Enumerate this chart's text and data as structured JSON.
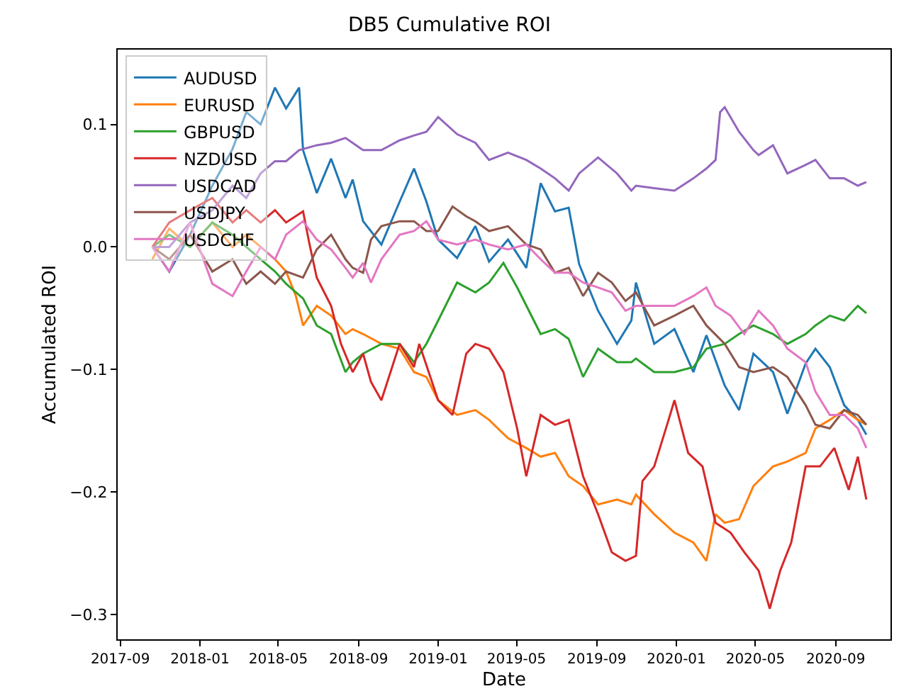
{
  "chart_data": {
    "type": "line",
    "title": "DB5 Cumulative ROI",
    "xlabel": "Date",
    "ylabel": "Accumulated ROI",
    "legend": "top left",
    "xlim": [
      "2017-08-28",
      "2020-11-24"
    ],
    "ylim": [
      -0.32,
      0.161
    ],
    "xticks": [
      "2017-09",
      "2018-01",
      "2018-05",
      "2018-09",
      "2019-01",
      "2019-05",
      "2019-09",
      "2020-01",
      "2020-05",
      "2020-09"
    ],
    "yticks": [
      {
        "value": -0.3,
        "label": "−0.3"
      },
      {
        "value": -0.2,
        "label": "−0.2"
      },
      {
        "value": -0.1,
        "label": "−0.1"
      },
      {
        "value": 0,
        "label": "0.0"
      },
      {
        "value": 0.1,
        "label": "0.1"
      }
    ],
    "series": [
      {
        "name": "AUDUSD",
        "color": "#1f77b4",
        "x": [
          "2017-10-20",
          "2017-11-15",
          "2017-12-17",
          "2018-01-20",
          "2018-02-20",
          "2018-03-13",
          "2018-04-04",
          "2018-04-26",
          "2018-05-13",
          "2018-06-02",
          "2018-06-08",
          "2018-06-29",
          "2018-07-21",
          "2018-08-12",
          "2018-08-23",
          "2018-09-08",
          "2018-10-06",
          "2018-11-03",
          "2018-11-25",
          "2018-12-14",
          "2019-01-01",
          "2019-01-30",
          "2019-02-27",
          "2019-03-20",
          "2019-04-18",
          "2019-05-16",
          "2019-06-07",
          "2019-06-29",
          "2019-07-20",
          "2019-08-05",
          "2019-09-03",
          "2019-10-02",
          "2019-10-24",
          "2019-10-31",
          "2019-11-28",
          "2019-12-29",
          "2020-01-27",
          "2020-02-16",
          "2020-03-15",
          "2020-04-06",
          "2020-04-28",
          "2020-05-28",
          "2020-06-19",
          "2020-07-17",
          "2020-08-01",
          "2020-08-23",
          "2020-09-14",
          "2020-10-05",
          "2020-10-18"
        ],
        "values": [
          0.0,
          -0.02,
          0.01,
          0.05,
          0.08,
          0.11,
          0.1,
          0.13,
          0.113,
          0.13,
          0.079,
          0.044,
          0.072,
          0.04,
          0.055,
          0.021,
          0.002,
          0.037,
          0.064,
          0.037,
          0.006,
          -0.009,
          0.017,
          -0.012,
          0.006,
          -0.017,
          0.052,
          0.029,
          0.032,
          -0.014,
          -0.052,
          -0.079,
          -0.06,
          -0.029,
          -0.079,
          -0.067,
          -0.102,
          -0.072,
          -0.113,
          -0.133,
          -0.087,
          -0.102,
          -0.136,
          -0.095,
          -0.083,
          -0.098,
          -0.129,
          -0.141,
          -0.153
        ]
      },
      {
        "name": "EURUSD",
        "color": "#ff7f0e",
        "x": [
          "2017-10-20",
          "2017-11-15",
          "2017-12-17",
          "2018-01-20",
          "2018-02-20",
          "2018-03-13",
          "2018-04-04",
          "2018-04-26",
          "2018-05-13",
          "2018-05-28",
          "2018-06-08",
          "2018-06-29",
          "2018-07-21",
          "2018-08-12",
          "2018-08-23",
          "2018-09-08",
          "2018-10-06",
          "2018-11-03",
          "2018-11-25",
          "2018-12-14",
          "2019-01-01",
          "2019-01-30",
          "2019-02-27",
          "2019-03-20",
          "2019-04-18",
          "2019-05-16",
          "2019-06-07",
          "2019-06-29",
          "2019-07-20",
          "2019-08-11",
          "2019-09-03",
          "2019-10-02",
          "2019-10-24",
          "2019-10-31",
          "2019-11-28",
          "2019-12-29",
          "2020-01-27",
          "2020-02-16",
          "2020-03-01",
          "2020-03-15",
          "2020-04-06",
          "2020-04-28",
          "2020-05-28",
          "2020-06-19",
          "2020-07-17",
          "2020-08-01",
          "2020-08-23",
          "2020-09-14",
          "2020-10-05",
          "2020-10-18"
        ],
        "values": [
          -0.01,
          0.015,
          0.0,
          0.02,
          0.0,
          0.01,
          0.0,
          -0.01,
          -0.02,
          -0.04,
          -0.064,
          -0.048,
          -0.056,
          -0.071,
          -0.067,
          -0.071,
          -0.079,
          -0.083,
          -0.102,
          -0.106,
          -0.125,
          -0.137,
          -0.133,
          -0.141,
          -0.156,
          -0.164,
          -0.171,
          -0.168,
          -0.187,
          -0.195,
          -0.21,
          -0.206,
          -0.21,
          -0.202,
          -0.218,
          -0.233,
          -0.241,
          -0.256,
          -0.218,
          -0.225,
          -0.222,
          -0.195,
          -0.179,
          -0.175,
          -0.168,
          -0.148,
          -0.141,
          -0.133,
          -0.141,
          -0.145
        ]
      },
      {
        "name": "GBPUSD",
        "color": "#2ca02c",
        "x": [
          "2017-10-20",
          "2017-11-15",
          "2017-12-17",
          "2018-01-20",
          "2018-02-20",
          "2018-03-13",
          "2018-04-04",
          "2018-04-26",
          "2018-05-13",
          "2018-06-08",
          "2018-06-29",
          "2018-07-21",
          "2018-08-12",
          "2018-08-23",
          "2018-09-08",
          "2018-10-06",
          "2018-11-03",
          "2018-11-25",
          "2018-12-14",
          "2019-01-01",
          "2019-01-30",
          "2019-02-27",
          "2019-03-20",
          "2019-04-11",
          "2019-05-02",
          "2019-06-07",
          "2019-06-29",
          "2019-07-20",
          "2019-08-11",
          "2019-09-03",
          "2019-10-02",
          "2019-10-24",
          "2019-10-31",
          "2019-11-28",
          "2019-12-29",
          "2020-01-27",
          "2020-02-16",
          "2020-03-15",
          "2020-04-06",
          "2020-04-28",
          "2020-05-28",
          "2020-06-19",
          "2020-07-17",
          "2020-08-01",
          "2020-08-23",
          "2020-09-14",
          "2020-10-05",
          "2020-10-18"
        ],
        "values": [
          0.0,
          0.01,
          0.0,
          0.02,
          0.01,
          0.0,
          -0.01,
          -0.02,
          -0.03,
          -0.042,
          -0.064,
          -0.071,
          -0.102,
          -0.094,
          -0.087,
          -0.079,
          -0.079,
          -0.094,
          -0.079,
          -0.06,
          -0.029,
          -0.037,
          -0.029,
          -0.013,
          -0.033,
          -0.071,
          -0.067,
          -0.075,
          -0.106,
          -0.083,
          -0.094,
          -0.094,
          -0.091,
          -0.102,
          -0.102,
          -0.098,
          -0.083,
          -0.079,
          -0.071,
          -0.064,
          -0.071,
          -0.079,
          -0.071,
          -0.064,
          -0.056,
          -0.06,
          -0.048,
          -0.054
        ]
      },
      {
        "name": "NZDUSD",
        "color": "#d62728",
        "x": [
          "2017-10-20",
          "2017-11-15",
          "2017-12-17",
          "2018-01-20",
          "2018-02-20",
          "2018-03-13",
          "2018-04-04",
          "2018-04-26",
          "2018-05-13",
          "2018-06-08",
          "2018-06-18",
          "2018-06-29",
          "2018-07-21",
          "2018-08-05",
          "2018-08-23",
          "2018-09-08",
          "2018-09-20",
          "2018-10-06",
          "2018-11-03",
          "2018-11-25",
          "2018-12-03",
          "2019-01-01",
          "2019-01-23",
          "2019-02-13",
          "2019-02-27",
          "2019-03-20",
          "2019-04-11",
          "2019-05-02",
          "2019-05-16",
          "2019-06-07",
          "2019-06-29",
          "2019-07-20",
          "2019-08-11",
          "2019-09-03",
          "2019-09-24",
          "2019-10-15",
          "2019-10-31",
          "2019-11-10",
          "2019-11-28",
          "2019-12-20",
          "2019-12-29",
          "2020-01-19",
          "2020-02-10",
          "2020-03-01",
          "2020-03-24",
          "2020-04-14",
          "2020-05-06",
          "2020-05-23",
          "2020-06-08",
          "2020-06-25",
          "2020-07-17",
          "2020-08-08",
          "2020-08-30",
          "2020-09-21",
          "2020-10-05",
          "2020-10-18"
        ],
        "values": [
          0.0,
          0.02,
          0.03,
          0.04,
          0.02,
          0.03,
          0.02,
          0.03,
          0.02,
          0.029,
          0.002,
          -0.025,
          -0.048,
          -0.079,
          -0.102,
          -0.087,
          -0.11,
          -0.125,
          -0.079,
          -0.098,
          -0.079,
          -0.125,
          -0.137,
          -0.087,
          -0.079,
          -0.083,
          -0.102,
          -0.148,
          -0.187,
          -0.137,
          -0.145,
          -0.141,
          -0.187,
          -0.218,
          -0.249,
          -0.256,
          -0.252,
          -0.191,
          -0.179,
          -0.141,
          -0.125,
          -0.168,
          -0.179,
          -0.225,
          -0.233,
          -0.249,
          -0.264,
          -0.295,
          -0.264,
          -0.241,
          -0.179,
          -0.179,
          -0.164,
          -0.198,
          -0.171,
          -0.206
        ]
      },
      {
        "name": "USDCAD",
        "color": "#9467bd",
        "x": [
          "2017-10-20",
          "2017-11-15",
          "2017-12-17",
          "2018-01-20",
          "2018-02-20",
          "2018-03-13",
          "2018-04-04",
          "2018-04-26",
          "2018-05-13",
          "2018-06-02",
          "2018-06-29",
          "2018-07-21",
          "2018-08-12",
          "2018-09-08",
          "2018-10-06",
          "2018-11-03",
          "2018-11-25",
          "2018-12-14",
          "2019-01-01",
          "2019-01-30",
          "2019-02-27",
          "2019-03-20",
          "2019-04-18",
          "2019-05-16",
          "2019-06-07",
          "2019-06-29",
          "2019-07-20",
          "2019-08-05",
          "2019-09-03",
          "2019-10-02",
          "2019-10-24",
          "2019-10-31",
          "2019-11-28",
          "2019-12-29",
          "2020-01-27",
          "2020-02-16",
          "2020-03-01",
          "2020-03-08",
          "2020-03-15",
          "2020-04-06",
          "2020-04-28",
          "2020-05-06",
          "2020-05-28",
          "2020-06-19",
          "2020-07-17",
          "2020-08-01",
          "2020-08-23",
          "2020-09-14",
          "2020-10-05",
          "2020-10-18"
        ],
        "values": [
          0.0,
          0.0,
          0.02,
          0.03,
          0.05,
          0.04,
          0.06,
          0.07,
          0.07,
          0.079,
          0.083,
          0.085,
          0.089,
          0.079,
          0.079,
          0.087,
          0.091,
          0.094,
          0.106,
          0.092,
          0.085,
          0.071,
          0.077,
          0.071,
          0.064,
          0.056,
          0.046,
          0.06,
          0.073,
          0.06,
          0.046,
          0.05,
          0.048,
          0.046,
          0.056,
          0.064,
          0.071,
          0.11,
          0.114,
          0.094,
          0.079,
          0.075,
          0.083,
          0.06,
          0.067,
          0.071,
          0.056,
          0.056,
          0.05,
          0.053
        ]
      },
      {
        "name": "USDJPY",
        "color": "#8c564b",
        "x": [
          "2017-10-20",
          "2017-11-15",
          "2017-12-17",
          "2018-01-20",
          "2018-02-20",
          "2018-03-13",
          "2018-04-04",
          "2018-04-26",
          "2018-05-13",
          "2018-06-08",
          "2018-06-29",
          "2018-07-21",
          "2018-08-12",
          "2018-08-23",
          "2018-09-08",
          "2018-09-20",
          "2018-10-06",
          "2018-11-03",
          "2018-11-25",
          "2018-12-14",
          "2019-01-01",
          "2019-01-23",
          "2019-02-13",
          "2019-02-27",
          "2019-03-20",
          "2019-04-18",
          "2019-05-16",
          "2019-06-07",
          "2019-06-29",
          "2019-07-20",
          "2019-08-11",
          "2019-09-03",
          "2019-09-24",
          "2019-10-15",
          "2019-10-31",
          "2019-11-28",
          "2019-12-29",
          "2020-01-27",
          "2020-02-16",
          "2020-03-15",
          "2020-04-06",
          "2020-04-28",
          "2020-05-28",
          "2020-06-19",
          "2020-07-17",
          "2020-08-01",
          "2020-08-23",
          "2020-09-14",
          "2020-10-05",
          "2020-10-18"
        ],
        "values": [
          0.0,
          -0.01,
          0.01,
          -0.02,
          -0.01,
          -0.03,
          -0.02,
          -0.03,
          -0.02,
          -0.025,
          -0.002,
          0.01,
          -0.01,
          -0.017,
          -0.021,
          0.006,
          0.017,
          0.021,
          0.021,
          0.013,
          0.013,
          0.033,
          0.025,
          0.021,
          0.013,
          0.017,
          0.002,
          -0.002,
          -0.021,
          -0.017,
          -0.04,
          -0.021,
          -0.029,
          -0.044,
          -0.037,
          -0.064,
          -0.056,
          -0.048,
          -0.064,
          -0.079,
          -0.098,
          -0.102,
          -0.098,
          -0.106,
          -0.129,
          -0.145,
          -0.148,
          -0.133,
          -0.137,
          -0.145
        ]
      },
      {
        "name": "USDCHF",
        "color": "#e377c2",
        "x": [
          "2017-10-20",
          "2017-11-15",
          "2017-12-17",
          "2018-01-20",
          "2018-02-20",
          "2018-03-13",
          "2018-04-04",
          "2018-04-26",
          "2018-05-13",
          "2018-06-08",
          "2018-06-29",
          "2018-07-21",
          "2018-08-12",
          "2018-08-23",
          "2018-09-08",
          "2018-09-20",
          "2018-10-06",
          "2018-11-03",
          "2018-11-25",
          "2018-12-14",
          "2019-01-01",
          "2019-01-30",
          "2019-02-27",
          "2019-03-20",
          "2019-04-18",
          "2019-05-16",
          "2019-06-07",
          "2019-06-29",
          "2019-07-20",
          "2019-08-11",
          "2019-09-03",
          "2019-09-24",
          "2019-10-15",
          "2019-10-31",
          "2019-11-28",
          "2019-12-29",
          "2020-01-27",
          "2020-02-16",
          "2020-03-01",
          "2020-03-24",
          "2020-04-14",
          "2020-05-06",
          "2020-05-28",
          "2020-06-19",
          "2020-07-17",
          "2020-08-01",
          "2020-08-23",
          "2020-09-14",
          "2020-10-05",
          "2020-10-18"
        ],
        "values": [
          0.0,
          -0.02,
          0.02,
          -0.03,
          -0.04,
          -0.02,
          0.0,
          -0.01,
          0.01,
          0.021,
          0.006,
          -0.002,
          -0.017,
          -0.025,
          -0.013,
          -0.029,
          -0.01,
          0.01,
          0.013,
          0.021,
          0.006,
          0.002,
          0.006,
          0.002,
          -0.002,
          0.002,
          -0.01,
          -0.021,
          -0.021,
          -0.029,
          -0.033,
          -0.037,
          -0.052,
          -0.048,
          -0.048,
          -0.048,
          -0.04,
          -0.033,
          -0.048,
          -0.056,
          -0.071,
          -0.052,
          -0.064,
          -0.083,
          -0.094,
          -0.118,
          -0.137,
          -0.137,
          -0.148,
          -0.164
        ]
      }
    ]
  }
}
